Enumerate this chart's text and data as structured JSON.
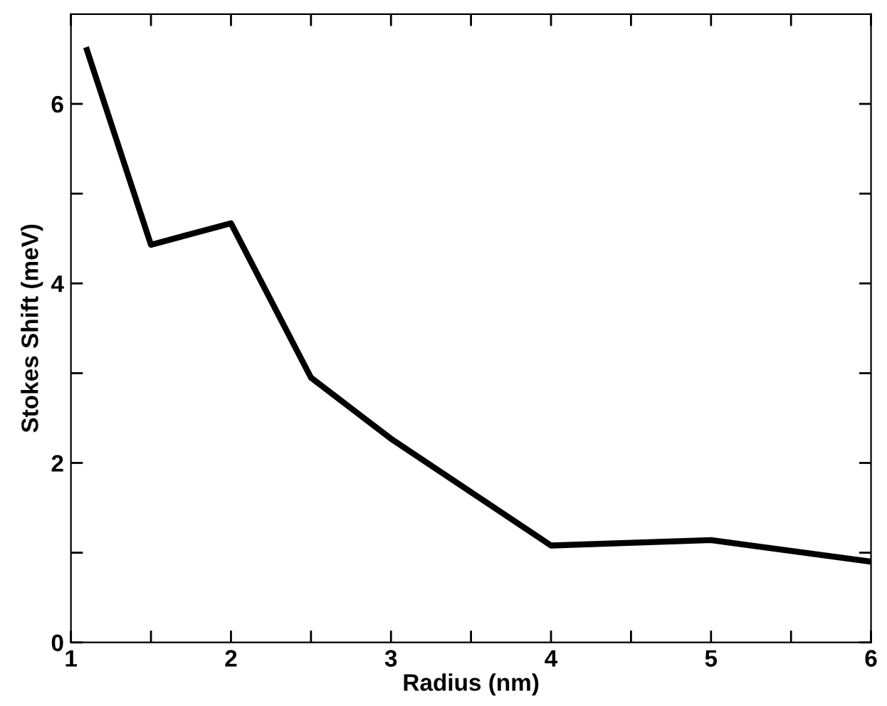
{
  "chart_data": {
    "type": "line",
    "xlabel": "Radius (nm)",
    "ylabel": "Stokes Shift (meV)",
    "x": [
      1.1,
      1.5,
      2,
      2.5,
      3,
      4,
      5,
      6
    ],
    "series": [
      {
        "color": "#000000",
        "values": [
          6.6,
          4.43,
          4.67,
          2.95,
          2.27,
          1.08,
          1.14,
          0.9
        ]
      }
    ],
    "xlim": [
      1,
      6
    ],
    "ylim": [
      0,
      7
    ],
    "xticks": [
      1,
      {
        "value": 1.5,
        "label": null
      },
      2,
      {
        "value": 2.5,
        "label": null
      },
      3,
      {
        "value": 3.5,
        "label": null
      },
      4,
      {
        "value": 4.5,
        "label": null
      },
      5,
      {
        "value": 5.5,
        "label": null
      },
      6
    ],
    "yticks": [
      0,
      {
        "value": 1,
        "label": null
      },
      2,
      {
        "value": 3,
        "label": null
      },
      4,
      {
        "value": 5,
        "label": null
      },
      6
    ],
    "grid": false,
    "marker": "none",
    "line_style": "solid"
  }
}
